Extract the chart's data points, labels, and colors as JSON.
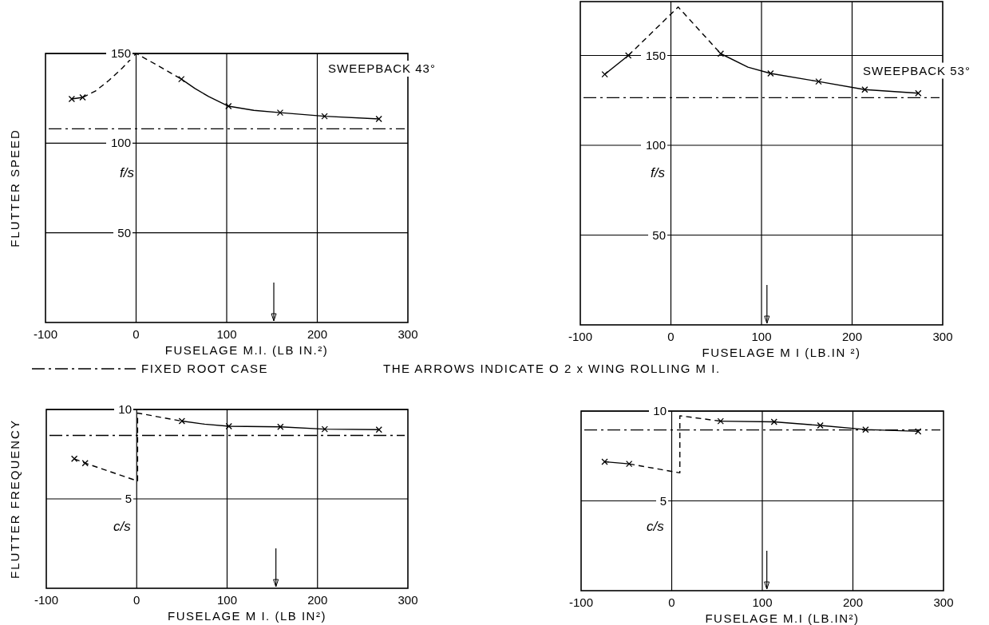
{
  "chart_data": [
    {
      "type": "line",
      "title": "SWEEPBACK 43°",
      "xlabel": "FUSELAGE M.I. (LB IN.²)",
      "ylabel": "FLUTTER SPEED",
      "annotations": [
        "f/s"
      ],
      "xlim": [
        -100,
        300
      ],
      "ylim": [
        0,
        150
      ],
      "xticks": [
        -100,
        0,
        100,
        200,
        300
      ],
      "yticks": [
        50,
        100,
        150
      ],
      "grid": true,
      "ref_lines": [
        {
          "axis": "y",
          "value": 108,
          "label": "FIXED ROOT CASE",
          "line_style": "dashdot",
          "color": "#000000"
        },
        {
          "axis": "x",
          "value": 152,
          "color": "#000000"
        }
      ],
      "series": [
        {
          "type": "line",
          "color": "#000000",
          "line_style": "solid",
          "marker": "none",
          "x": [
            -71,
            -59
          ],
          "values": [
            124.6,
            125.5
          ]
        },
        {
          "type": "line",
          "color": "#000000",
          "line_style": "dashed",
          "marker": "none",
          "x": [
            -59,
            -45,
            -30,
            -15,
            0,
            25,
            50
          ],
          "values": [
            125.5,
            129,
            135,
            142,
            150,
            143,
            135.7
          ]
        },
        {
          "type": "line",
          "color": "#000000",
          "line_style": "solid",
          "marker": "none",
          "x": [
            50,
            65,
            80,
            102,
            130,
            159,
            208,
            268
          ],
          "values": [
            135.7,
            130.5,
            126,
            120.6,
            118.3,
            117,
            115,
            113.5
          ]
        },
        {
          "type": "scatter",
          "color": "#000000",
          "marker": "cross",
          "x": [
            -71,
            -59,
            50,
            102,
            159,
            208,
            268
          ],
          "values": [
            124.6,
            125.5,
            135.7,
            120.6,
            117,
            115,
            113.5
          ]
        }
      ]
    },
    {
      "type": "line",
      "title": "SWEEPBACK 53°",
      "xlabel": "FUSELAGE M I (LB.IN ²)",
      "annotations": [
        "f/s",
        "THE ARROWS INDICATE O 2 x WING ROLLING M I."
      ],
      "xlim": [
        -100,
        300
      ],
      "ylim": [
        0,
        180
      ],
      "xticks": [
        -100,
        0,
        100,
        200,
        300
      ],
      "yticks": [
        50,
        100,
        150
      ],
      "grid": true,
      "ref_lines": [
        {
          "axis": "y",
          "value": 126.5,
          "line_style": "dashdot",
          "color": "#000000"
        },
        {
          "axis": "x",
          "value": 106,
          "color": "#000000"
        }
      ],
      "series": [
        {
          "type": "line",
          "color": "#000000",
          "line_style": "solid",
          "marker": "none",
          "x": [
            -73,
            -47
          ],
          "values": [
            139.5,
            150
          ]
        },
        {
          "type": "line",
          "color": "#000000",
          "line_style": "dashed",
          "marker": "none",
          "x": [
            -47,
            8,
            55
          ],
          "values": [
            150,
            177,
            151
          ]
        },
        {
          "type": "line",
          "color": "#000000",
          "line_style": "solid",
          "marker": "none",
          "x": [
            55,
            85,
            110,
            163,
            214,
            273
          ],
          "values": [
            151,
            143.5,
            140,
            135.5,
            131,
            129
          ]
        },
        {
          "type": "scatter",
          "color": "#000000",
          "marker": "cross",
          "x": [
            -73,
            -47,
            55,
            110,
            163,
            214,
            273
          ],
          "values": [
            139.5,
            150,
            151,
            140,
            135.5,
            131,
            129
          ]
        }
      ]
    },
    {
      "type": "line",
      "xlabel": "FUSELAGE M I. (LB IN²)",
      "ylabel": "FLUTTER FREQUENCY",
      "annotations": [
        "c/s"
      ],
      "xlim": [
        -100,
        300
      ],
      "ylim": [
        0,
        10
      ],
      "xticks": [
        -100,
        0,
        100,
        200,
        300
      ],
      "yticks": [
        5,
        10
      ],
      "grid": true,
      "ref_lines": [
        {
          "axis": "y",
          "value": 8.55,
          "line_style": "dashdot",
          "color": "#000000"
        },
        {
          "axis": "x",
          "value": 154,
          "color": "#000000"
        }
      ],
      "series": [
        {
          "type": "line",
          "color": "#000000",
          "line_style": "dashed",
          "marker": "none",
          "x": [
            -69,
            -57,
            1,
            1,
            50
          ],
          "values": [
            7.24,
            7.0,
            6.0,
            9.8,
            9.35
          ]
        },
        {
          "type": "line",
          "color": "#000000",
          "line_style": "solid",
          "marker": "none",
          "x": [
            50,
            75,
            102,
            159,
            208,
            268
          ],
          "values": [
            9.35,
            9.18,
            9.06,
            9.03,
            8.9,
            8.87
          ]
        },
        {
          "type": "scatter",
          "color": "#000000",
          "marker": "cross",
          "x": [
            -69,
            -57,
            50,
            102,
            159,
            208,
            268
          ],
          "values": [
            7.24,
            7.0,
            9.35,
            9.06,
            9.03,
            8.9,
            8.87
          ]
        }
      ]
    },
    {
      "type": "line",
      "xlabel": "FUSELAGE M.I (LB.IN²)",
      "annotations": [
        "c/s"
      ],
      "xlim": [
        -100,
        300
      ],
      "ylim": [
        0,
        10
      ],
      "xticks": [
        -100,
        0,
        100,
        200,
        300
      ],
      "yticks": [
        5,
        10
      ],
      "grid": true,
      "ref_lines": [
        {
          "axis": "y",
          "value": 8.95,
          "line_style": "dashdot",
          "color": "#000000"
        },
        {
          "axis": "x",
          "value": 105,
          "color": "#000000"
        }
      ],
      "series": [
        {
          "type": "line",
          "color": "#000000",
          "line_style": "solid",
          "marker": "none",
          "x": [
            -74,
            -47
          ],
          "values": [
            7.18,
            7.06
          ]
        },
        {
          "type": "line",
          "color": "#000000",
          "line_style": "dashed",
          "marker": "none",
          "x": [
            -47,
            9,
            9,
            54
          ],
          "values": [
            7.06,
            6.56,
            9.74,
            9.44
          ]
        },
        {
          "type": "line",
          "color": "#000000",
          "line_style": "solid",
          "marker": "none",
          "x": [
            54,
            113,
            164,
            214,
            272
          ],
          "values": [
            9.44,
            9.4,
            9.2,
            8.97,
            8.87
          ]
        },
        {
          "type": "scatter",
          "color": "#000000",
          "marker": "cross",
          "x": [
            -74,
            -47,
            54,
            113,
            164,
            214,
            272
          ],
          "values": [
            7.18,
            7.06,
            9.44,
            9.4,
            9.2,
            8.97,
            8.87
          ]
        }
      ]
    }
  ]
}
